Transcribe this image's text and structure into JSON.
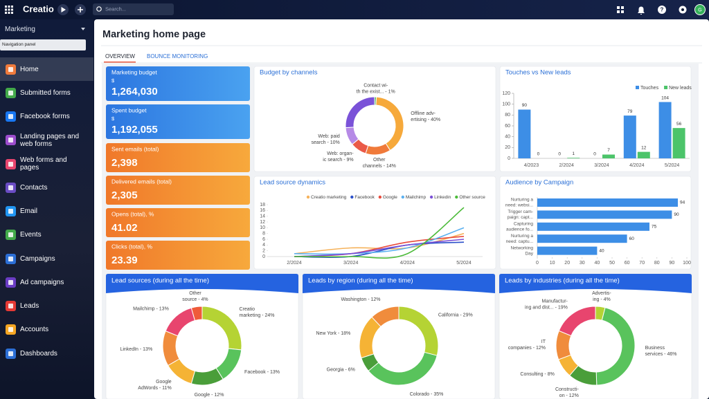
{
  "topbar": {
    "logo": "Creatio",
    "search": "Search...",
    "avatar": "G"
  },
  "sidebar": {
    "section": "Marketing",
    "tooltip": "Navigation panel",
    "items": [
      "Home",
      "Submitted forms",
      "Facebook forms",
      "Landing pages and web forms",
      "Web forms and pages",
      "Contacts",
      "Email",
      "Events",
      "Campaigns",
      "Ad campaigns",
      "Leads",
      "Accounts",
      "Dashboards"
    ]
  },
  "header": {
    "title": "Marketing home page"
  },
  "tabs": [
    "OVERVIEW",
    "BOUNCE MONITORING"
  ],
  "metrics": [
    {
      "label": "Marketing budget",
      "unit": "$",
      "value": "1,264,030"
    },
    {
      "label": "Spent budget",
      "unit": "$",
      "value": "1,192,055"
    },
    {
      "label": "Sent emails (total)",
      "value": "2,398"
    },
    {
      "label": "Delivered emails (total)",
      "value": "2,305"
    },
    {
      "label": "Opens (total), %",
      "value": "41.02"
    },
    {
      "label": "Clicks (total), %",
      "value": "23.39"
    }
  ],
  "cards": [
    {
      "type": "pie",
      "title": "Budget by channels",
      "labels": [
        [
          "Contact wi-",
          "th the exist... - 1%"
        ],
        [
          "Offline adv-",
          "ertising - 40%"
        ],
        [
          "Other",
          "channels - 14%"
        ],
        [
          "Web: organ-",
          "ic search - 9%"
        ],
        [
          "Web: paid",
          "search - 10%"
        ],
        null
      ],
      "values": [
        1,
        40,
        14,
        9,
        10,
        26
      ],
      "colors": [
        "#4cbb5a",
        "#f6a93b",
        "#f07a3a",
        "#ea5a48",
        "#b68ae6",
        "#7a52d8"
      ]
    },
    {
      "type": "bar",
      "title": "Touches vs New leads",
      "categories": [
        "4/2023",
        "2/2024",
        "3/2024",
        "4/2024",
        "5/2024"
      ],
      "series": [
        {
          "name": "Touches",
          "color": "#3d8ee6",
          "values": [
            90,
            0,
            0,
            79,
            104
          ]
        },
        {
          "name": "New leads",
          "color": "#4cc46a",
          "values": [
            0,
            1,
            7,
            12,
            56
          ]
        }
      ],
      "ylim": [
        0,
        120
      ],
      "yticks": [
        0,
        20,
        40,
        60,
        80,
        100,
        120
      ],
      "legend": "top-right"
    },
    {
      "type": "line",
      "title": "Lead source dynamics",
      "categories": [
        "2/2024",
        "3/2024",
        "4/2024",
        "5/2024"
      ],
      "series": [
        {
          "name": "Creatio marketing",
          "color": "#f6b25a",
          "values": [
            1,
            3,
            3,
            8
          ]
        },
        {
          "name": "Facebook",
          "color": "#2a4fc9",
          "values": [
            0,
            0,
            4,
            5
          ]
        },
        {
          "name": "Google",
          "color": "#e84a3c",
          "values": [
            0,
            1,
            5,
            7
          ]
        },
        {
          "name": "Mailchimp",
          "color": "#5ab0f0",
          "values": [
            1,
            1,
            3,
            10
          ]
        },
        {
          "name": "Linkedin",
          "color": "#7a4fd6",
          "values": [
            0,
            1,
            4,
            6
          ]
        },
        {
          "name": "Other source",
          "color": "#4cbb3a",
          "values": [
            0,
            0,
            1,
            17
          ]
        }
      ],
      "ylim": [
        0,
        18
      ],
      "yticks": [
        0,
        2,
        4,
        6,
        8,
        10,
        12,
        14,
        16,
        18
      ],
      "legend": "top"
    },
    {
      "type": "hbar",
      "title": "Audience by Campaign",
      "categories": [
        [
          "Nurturing a",
          "need: websi..."
        ],
        [
          "Trigger cam-",
          "paign: capt..."
        ],
        [
          "Capturing",
          "audience fo..."
        ],
        [
          "Nurturing a",
          "need: captu..."
        ],
        [
          "Networking",
          "Day"
        ]
      ],
      "values": [
        94,
        90,
        75,
        60,
        40
      ],
      "color": "#3d8ee6",
      "xlim": [
        0,
        100
      ],
      "xticks": [
        0,
        10,
        20,
        30,
        40,
        50,
        60,
        70,
        80,
        90,
        100
      ]
    },
    {
      "type": "pie",
      "title": "Lead sources (during all the time)",
      "labels": [
        [
          "Creatio",
          "marketing - 24%"
        ],
        [
          "Facebook - 13%"
        ],
        [
          "Google - 12%"
        ],
        [
          "Google",
          "AdWords - 11%"
        ],
        [
          "LinkedIn - 13%"
        ],
        [
          "Mailchimp - 13%"
        ],
        [
          "Other",
          "source - 4%"
        ]
      ],
      "values": [
        24,
        13,
        12,
        11,
        13,
        13,
        4
      ],
      "colors": [
        "#b5d334",
        "#59c35c",
        "#4a9e3a",
        "#f5b335",
        "#f08c3c",
        "#e8456e",
        "#ef5b3a"
      ]
    },
    {
      "type": "pie",
      "title": "Leads by region (during all the time)",
      "labels": [
        [
          "California - 29%"
        ],
        [
          "Colorado - 35%"
        ],
        [
          "Georgia - 6%"
        ],
        [
          "New York - 18%"
        ],
        [
          "Washington - 12%"
        ]
      ],
      "values": [
        29,
        35,
        6,
        18,
        12
      ],
      "colors": [
        "#b5d334",
        "#59c35c",
        "#4a9e3a",
        "#f5b335",
        "#f08c3c"
      ]
    },
    {
      "type": "pie",
      "title": "Leads by industries (during all the time)",
      "labels": [
        [
          "Advertis-",
          "ing - 4%"
        ],
        [
          "Business",
          "services - 46%"
        ],
        [
          "Constructi-",
          "on - 12%"
        ],
        [
          "Consulting - 8%"
        ],
        [
          "IT",
          "companies - 12%"
        ],
        [
          "Manufactur-",
          "ing and dist... - 19%"
        ]
      ],
      "values": [
        4,
        46,
        12,
        8,
        12,
        19
      ],
      "colors": [
        "#b5d334",
        "#59c35c",
        "#4a9e3a",
        "#f5b335",
        "#f08c3c",
        "#e8456e"
      ]
    }
  ]
}
